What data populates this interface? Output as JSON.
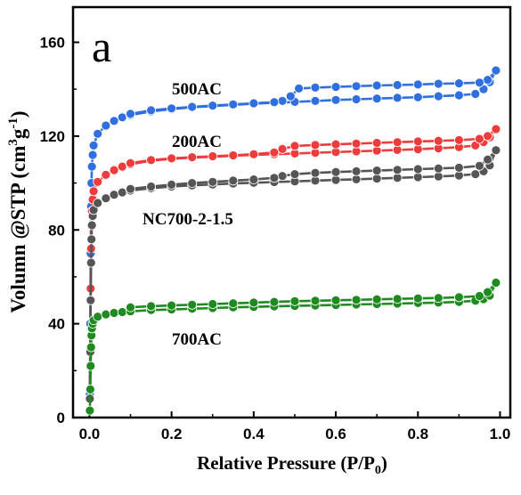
{
  "chart_data": {
    "type": "line",
    "panel_label": "a",
    "xlabel": "Relative Pressure (P/P0)",
    "xlabel_parts": {
      "main": "Relative Pressure (P/P",
      "sub": "0",
      "close": ")"
    },
    "ylabel": "Volumn @STP (cm3g-1)",
    "ylabel_parts": {
      "main": "Volumn @STP (cm",
      "sup1": "3",
      "mid": "g",
      "sup2": "-1",
      "close": ")"
    },
    "xlim": [
      -0.04,
      1.025
    ],
    "ylim": [
      0,
      175
    ],
    "xticks": [
      0.0,
      0.2,
      0.4,
      0.6,
      0.8,
      1.0
    ],
    "xtick_labels": [
      "0.0",
      "0.2",
      "0.4",
      "0.6",
      "0.8",
      "1.0"
    ],
    "yticks": [
      0,
      40,
      80,
      120,
      160
    ],
    "ytick_labels": [
      "0",
      "40",
      "80",
      "120",
      "160"
    ],
    "grid": false,
    "legend": "inline labels",
    "series": [
      {
        "name": "500AC",
        "color": "#2f6fe0",
        "adsorption": [
          [
            0.001,
            10
          ],
          [
            0.002,
            40
          ],
          [
            0.003,
            70
          ],
          [
            0.004,
            90
          ],
          [
            0.005,
            100
          ],
          [
            0.006,
            107
          ],
          [
            0.008,
            112
          ],
          [
            0.01,
            116
          ],
          [
            0.02,
            121
          ],
          [
            0.04,
            124.5
          ],
          [
            0.06,
            126.5
          ],
          [
            0.08,
            128
          ],
          [
            0.1,
            129
          ],
          [
            0.15,
            130.5
          ],
          [
            0.2,
            131.5
          ],
          [
            0.25,
            132.3
          ],
          [
            0.3,
            132.8
          ],
          [
            0.35,
            133.3
          ],
          [
            0.4,
            133.8
          ],
          [
            0.45,
            134.2
          ],
          [
            0.5,
            134.6
          ],
          [
            0.55,
            135
          ],
          [
            0.6,
            135.4
          ],
          [
            0.65,
            135.7
          ],
          [
            0.7,
            136
          ],
          [
            0.75,
            136.3
          ],
          [
            0.8,
            136.6
          ],
          [
            0.85,
            137
          ],
          [
            0.9,
            137.4
          ],
          [
            0.94,
            138
          ],
          [
            0.96,
            140
          ],
          [
            0.975,
            143
          ],
          [
            0.99,
            148
          ]
        ],
        "desorption": [
          [
            0.99,
            148
          ],
          [
            0.97,
            144
          ],
          [
            0.95,
            142.8
          ],
          [
            0.9,
            142.5
          ],
          [
            0.85,
            142.3
          ],
          [
            0.8,
            142
          ],
          [
            0.75,
            141.8
          ],
          [
            0.7,
            141.6
          ],
          [
            0.65,
            141.3
          ],
          [
            0.6,
            141
          ],
          [
            0.55,
            140.7
          ],
          [
            0.51,
            140.3
          ],
          [
            0.49,
            137
          ],
          [
            0.47,
            135
          ],
          [
            0.45,
            134.5
          ],
          [
            0.4,
            134
          ],
          [
            0.35,
            133.5
          ],
          [
            0.3,
            133
          ],
          [
            0.25,
            132.5
          ],
          [
            0.2,
            131.8
          ],
          [
            0.15,
            131
          ],
          [
            0.1,
            129.5
          ]
        ]
      },
      {
        "name": "200AC",
        "color": "#ee3b3b",
        "adsorption": [
          [
            0.001,
            8
          ],
          [
            0.002,
            30
          ],
          [
            0.003,
            55
          ],
          [
            0.004,
            72
          ],
          [
            0.005,
            82
          ],
          [
            0.006,
            88
          ],
          [
            0.008,
            93
          ],
          [
            0.01,
            96.5
          ],
          [
            0.02,
            100.5
          ],
          [
            0.04,
            103.5
          ],
          [
            0.06,
            105.5
          ],
          [
            0.08,
            107
          ],
          [
            0.1,
            108
          ],
          [
            0.15,
            109.5
          ],
          [
            0.2,
            110.3
          ],
          [
            0.25,
            110.8
          ],
          [
            0.3,
            111.2
          ],
          [
            0.35,
            111.6
          ],
          [
            0.4,
            112
          ],
          [
            0.45,
            112.3
          ],
          [
            0.5,
            112.6
          ],
          [
            0.55,
            112.9
          ],
          [
            0.6,
            113.2
          ],
          [
            0.65,
            113.5
          ],
          [
            0.7,
            113.8
          ],
          [
            0.75,
            114.1
          ],
          [
            0.8,
            114.4
          ],
          [
            0.85,
            114.8
          ],
          [
            0.9,
            115.3
          ],
          [
            0.94,
            116
          ],
          [
            0.96,
            117.5
          ],
          [
            0.975,
            119.5
          ],
          [
            0.99,
            123
          ]
        ],
        "desorption": [
          [
            0.99,
            123
          ],
          [
            0.97,
            120
          ],
          [
            0.95,
            118.8
          ],
          [
            0.9,
            118.3
          ],
          [
            0.85,
            118
          ],
          [
            0.8,
            117.7
          ],
          [
            0.75,
            117.4
          ],
          [
            0.7,
            117.1
          ],
          [
            0.65,
            116.8
          ],
          [
            0.6,
            116.5
          ],
          [
            0.55,
            116.2
          ],
          [
            0.5,
            115.8
          ],
          [
            0.47,
            114.5
          ],
          [
            0.45,
            113
          ],
          [
            0.4,
            112.3
          ],
          [
            0.35,
            111.8
          ],
          [
            0.3,
            111.4
          ],
          [
            0.25,
            111
          ],
          [
            0.2,
            110.5
          ],
          [
            0.15,
            109.8
          ],
          [
            0.1,
            108.5
          ]
        ]
      },
      {
        "name": "NC700-2-1.5",
        "color": "#555555",
        "adsorption": [
          [
            0.001,
            8
          ],
          [
            0.002,
            28
          ],
          [
            0.003,
            50
          ],
          [
            0.004,
            66
          ],
          [
            0.005,
            76
          ],
          [
            0.006,
            82
          ],
          [
            0.008,
            86
          ],
          [
            0.01,
            88.5
          ],
          [
            0.02,
            91.5
          ],
          [
            0.04,
            93.5
          ],
          [
            0.06,
            95
          ],
          [
            0.08,
            96
          ],
          [
            0.1,
            96.8
          ],
          [
            0.15,
            97.8
          ],
          [
            0.2,
            98.5
          ],
          [
            0.25,
            99
          ],
          [
            0.3,
            99.4
          ],
          [
            0.35,
            99.8
          ],
          [
            0.4,
            100.1
          ],
          [
            0.45,
            100.4
          ],
          [
            0.5,
            100.7
          ],
          [
            0.55,
            101
          ],
          [
            0.6,
            101.3
          ],
          [
            0.65,
            101.6
          ],
          [
            0.7,
            101.9
          ],
          [
            0.75,
            102.2
          ],
          [
            0.8,
            102.5
          ],
          [
            0.85,
            102.8
          ],
          [
            0.9,
            103.2
          ],
          [
            0.94,
            103.8
          ],
          [
            0.96,
            105
          ],
          [
            0.975,
            107.5
          ],
          [
            0.99,
            114
          ]
        ],
        "desorption": [
          [
            0.99,
            114
          ],
          [
            0.97,
            110
          ],
          [
            0.95,
            107.3
          ],
          [
            0.9,
            106.5
          ],
          [
            0.85,
            106.2
          ],
          [
            0.8,
            105.9
          ],
          [
            0.75,
            105.6
          ],
          [
            0.7,
            105.3
          ],
          [
            0.65,
            105
          ],
          [
            0.6,
            104.7
          ],
          [
            0.55,
            104.3
          ],
          [
            0.5,
            103.8
          ],
          [
            0.47,
            103
          ],
          [
            0.45,
            102.2
          ],
          [
            0.4,
            101.5
          ],
          [
            0.35,
            101
          ],
          [
            0.3,
            100.5
          ],
          [
            0.25,
            100
          ],
          [
            0.2,
            99.3
          ],
          [
            0.15,
            98.5
          ],
          [
            0.1,
            97.5
          ]
        ]
      },
      {
        "name": "700AC",
        "color": "#1f8a1f",
        "adsorption": [
          [
            0.001,
            3
          ],
          [
            0.002,
            12
          ],
          [
            0.003,
            22
          ],
          [
            0.004,
            30
          ],
          [
            0.005,
            35
          ],
          [
            0.006,
            38
          ],
          [
            0.008,
            40
          ],
          [
            0.01,
            41.5
          ],
          [
            0.02,
            43
          ],
          [
            0.04,
            44
          ],
          [
            0.06,
            44.6
          ],
          [
            0.08,
            45
          ],
          [
            0.1,
            45.3
          ],
          [
            0.15,
            45.8
          ],
          [
            0.2,
            46.1
          ],
          [
            0.25,
            46.4
          ],
          [
            0.3,
            46.7
          ],
          [
            0.35,
            47
          ],
          [
            0.4,
            47.2
          ],
          [
            0.45,
            47.4
          ],
          [
            0.5,
            47.6
          ],
          [
            0.55,
            47.8
          ],
          [
            0.6,
            48
          ],
          [
            0.65,
            48.2
          ],
          [
            0.7,
            48.4
          ],
          [
            0.75,
            48.6
          ],
          [
            0.8,
            48.8
          ],
          [
            0.85,
            49
          ],
          [
            0.9,
            49.3
          ],
          [
            0.94,
            49.8
          ],
          [
            0.96,
            50.5
          ],
          [
            0.975,
            52
          ],
          [
            0.99,
            57.5
          ]
        ],
        "desorption": [
          [
            0.99,
            57.5
          ],
          [
            0.97,
            53.5
          ],
          [
            0.95,
            51.8
          ],
          [
            0.9,
            51.3
          ],
          [
            0.85,
            51
          ],
          [
            0.8,
            50.8
          ],
          [
            0.75,
            50.6
          ],
          [
            0.7,
            50.4
          ],
          [
            0.65,
            50.2
          ],
          [
            0.6,
            50
          ],
          [
            0.55,
            49.8
          ],
          [
            0.5,
            49.6
          ],
          [
            0.45,
            49.3
          ],
          [
            0.4,
            49
          ],
          [
            0.35,
            48.7
          ],
          [
            0.3,
            48.4
          ],
          [
            0.25,
            48.1
          ],
          [
            0.2,
            47.8
          ],
          [
            0.15,
            47.5
          ],
          [
            0.1,
            47
          ]
        ]
      }
    ]
  }
}
